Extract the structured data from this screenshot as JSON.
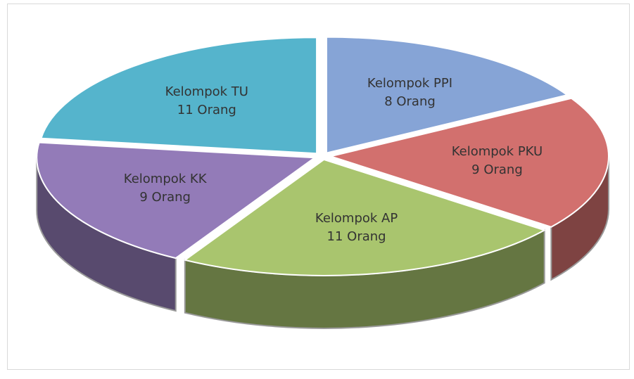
{
  "chart_data": {
    "type": "pie",
    "categories": [
      "Kelompok PPI",
      "Kelompok PKU",
      "Kelompok AP",
      "Kelompok KK",
      "Kelompok TU"
    ],
    "values": [
      8,
      9,
      11,
      9,
      11
    ],
    "value_labels": [
      "8 Orang",
      "9 Orang",
      "11 Orang",
      "9 Orang",
      "11 Orang"
    ],
    "colors": [
      "#86a4d6",
      "#d2706e",
      "#a9c56e",
      "#937bb8",
      "#55b4cc"
    ]
  }
}
